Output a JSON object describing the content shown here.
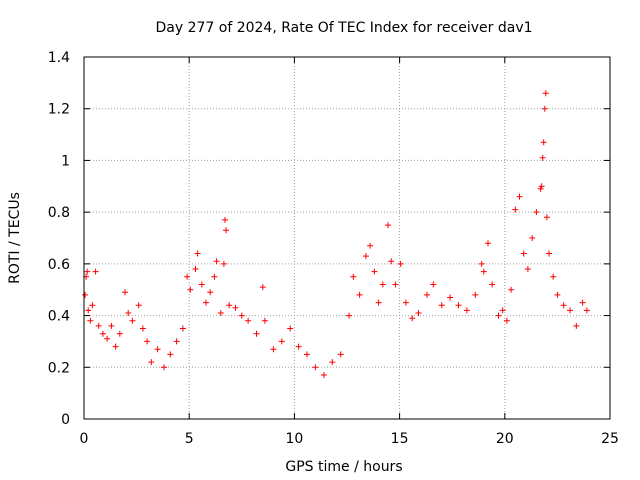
{
  "chart_data": {
    "type": "scatter",
    "title": "Day 277 of 2024, Rate Of TEC Index for receiver dav1",
    "xlabel": "GPS time / hours",
    "ylabel": "ROTI / TECUs",
    "xlim": [
      0,
      25
    ],
    "ylim": [
      0,
      1.4
    ],
    "xticks": [
      0,
      5,
      10,
      15,
      20,
      25
    ],
    "yticks": [
      0,
      0.2,
      0.4,
      0.6,
      0.8,
      1,
      1.2,
      1.4
    ],
    "xtick_labels": [
      "0",
      "5",
      "10",
      "15",
      "20",
      "25"
    ],
    "ytick_labels": [
      "0",
      "0.2",
      "0.4",
      "0.6",
      "0.8",
      "1",
      "1.2",
      "1.4"
    ],
    "grid": true,
    "marker": "+",
    "color": "#ff0000",
    "series": [
      {
        "name": "ROTI",
        "points": [
          [
            0.05,
            0.48
          ],
          [
            0.1,
            0.55
          ],
          [
            0.15,
            0.57
          ],
          [
            0.2,
            0.42
          ],
          [
            0.3,
            0.38
          ],
          [
            0.4,
            0.44
          ],
          [
            0.55,
            0.57
          ],
          [
            0.7,
            0.36
          ],
          [
            0.9,
            0.33
          ],
          [
            1.1,
            0.31
          ],
          [
            1.3,
            0.36
          ],
          [
            1.5,
            0.28
          ],
          [
            1.7,
            0.33
          ],
          [
            1.95,
            0.49
          ],
          [
            2.1,
            0.41
          ],
          [
            2.3,
            0.38
          ],
          [
            2.6,
            0.44
          ],
          [
            2.8,
            0.35
          ],
          [
            3.0,
            0.3
          ],
          [
            3.2,
            0.22
          ],
          [
            3.5,
            0.27
          ],
          [
            3.8,
            0.2
          ],
          [
            4.1,
            0.25
          ],
          [
            4.4,
            0.3
          ],
          [
            4.7,
            0.35
          ],
          [
            4.9,
            0.55
          ],
          [
            5.05,
            0.5
          ],
          [
            5.3,
            0.58
          ],
          [
            5.4,
            0.64
          ],
          [
            5.6,
            0.52
          ],
          [
            5.8,
            0.45
          ],
          [
            6.0,
            0.49
          ],
          [
            6.2,
            0.55
          ],
          [
            6.3,
            0.61
          ],
          [
            6.5,
            0.41
          ],
          [
            6.65,
            0.6
          ],
          [
            6.7,
            0.77
          ],
          [
            6.75,
            0.73
          ],
          [
            6.9,
            0.44
          ],
          [
            7.2,
            0.43
          ],
          [
            7.5,
            0.4
          ],
          [
            7.8,
            0.38
          ],
          [
            8.2,
            0.33
          ],
          [
            8.5,
            0.51
          ],
          [
            8.6,
            0.38
          ],
          [
            9.0,
            0.27
          ],
          [
            9.4,
            0.3
          ],
          [
            9.8,
            0.35
          ],
          [
            10.2,
            0.28
          ],
          [
            10.6,
            0.25
          ],
          [
            11.0,
            0.2
          ],
          [
            11.4,
            0.17
          ],
          [
            11.8,
            0.22
          ],
          [
            12.2,
            0.25
          ],
          [
            12.6,
            0.4
          ],
          [
            12.8,
            0.55
          ],
          [
            13.1,
            0.48
          ],
          [
            13.4,
            0.63
          ],
          [
            13.6,
            0.67
          ],
          [
            13.8,
            0.57
          ],
          [
            14.0,
            0.45
          ],
          [
            14.2,
            0.52
          ],
          [
            14.45,
            0.75
          ],
          [
            14.6,
            0.61
          ],
          [
            14.8,
            0.52
          ],
          [
            15.05,
            0.6
          ],
          [
            15.3,
            0.45
          ],
          [
            15.6,
            0.39
          ],
          [
            15.9,
            0.41
          ],
          [
            16.3,
            0.48
          ],
          [
            16.6,
            0.52
          ],
          [
            17.0,
            0.44
          ],
          [
            17.4,
            0.47
          ],
          [
            17.8,
            0.44
          ],
          [
            18.2,
            0.42
          ],
          [
            18.6,
            0.48
          ],
          [
            18.9,
            0.6
          ],
          [
            19.0,
            0.57
          ],
          [
            19.2,
            0.68
          ],
          [
            19.4,
            0.52
          ],
          [
            19.7,
            0.4
          ],
          [
            19.9,
            0.42
          ],
          [
            20.1,
            0.38
          ],
          [
            20.3,
            0.5
          ],
          [
            20.5,
            0.81
          ],
          [
            20.7,
            0.86
          ],
          [
            20.9,
            0.64
          ],
          [
            21.1,
            0.58
          ],
          [
            21.3,
            0.7
          ],
          [
            21.5,
            0.8
          ],
          [
            21.7,
            0.89
          ],
          [
            21.75,
            0.9
          ],
          [
            21.8,
            1.01
          ],
          [
            21.85,
            1.07
          ],
          [
            21.9,
            1.2
          ],
          [
            21.95,
            1.26
          ],
          [
            22.0,
            0.78
          ],
          [
            22.1,
            0.64
          ],
          [
            22.3,
            0.55
          ],
          [
            22.5,
            0.48
          ],
          [
            22.8,
            0.44
          ],
          [
            23.1,
            0.42
          ],
          [
            23.4,
            0.36
          ],
          [
            23.7,
            0.45
          ],
          [
            23.9,
            0.42
          ]
        ]
      }
    ]
  }
}
